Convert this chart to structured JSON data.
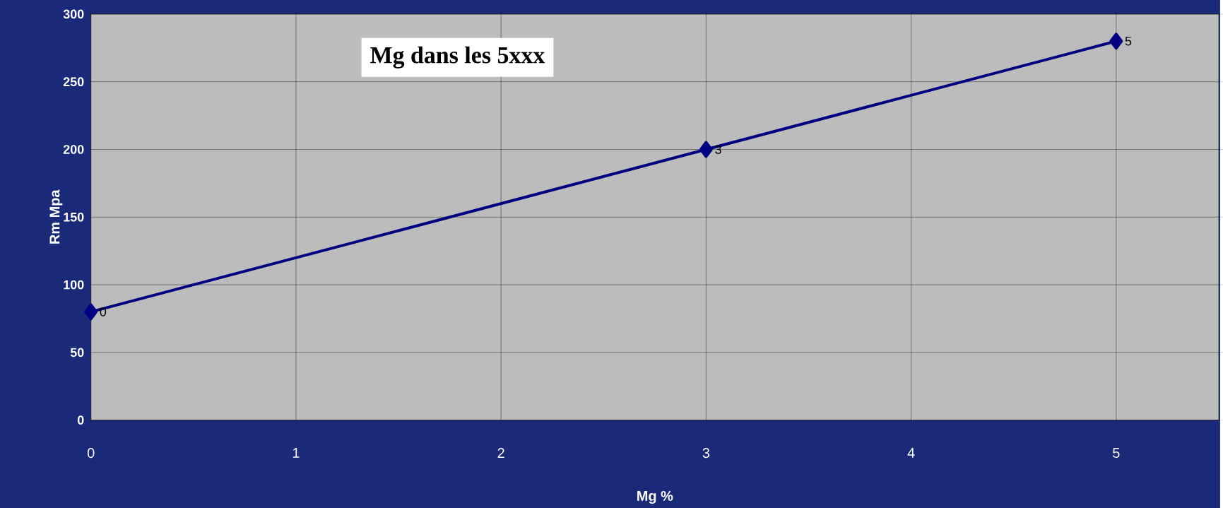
{
  "chart_data": {
    "type": "line",
    "title": "Mg dans les 5xxx",
    "xlabel": "Mg %",
    "ylabel": "Rm  Mpa",
    "x": [
      0,
      3,
      5
    ],
    "series": [
      {
        "color": "#000080",
        "values": [
          80,
          200,
          280
        ]
      }
    ],
    "annotations": [
      {
        "text": "0",
        "x": 0,
        "y": 80
      },
      {
        "text": "3",
        "x": 3,
        "y": 200
      },
      {
        "text": "5",
        "x": 5,
        "y": 280
      }
    ],
    "xlim": [
      0,
      5.5
    ],
    "ylim": [
      0,
      300
    ],
    "xticks": [
      0,
      1,
      2,
      3,
      4,
      5
    ],
    "yticks": [
      0,
      50,
      100,
      150,
      200,
      250,
      300
    ],
    "grid": true,
    "marker": "diamond",
    "line_style": "solid"
  }
}
